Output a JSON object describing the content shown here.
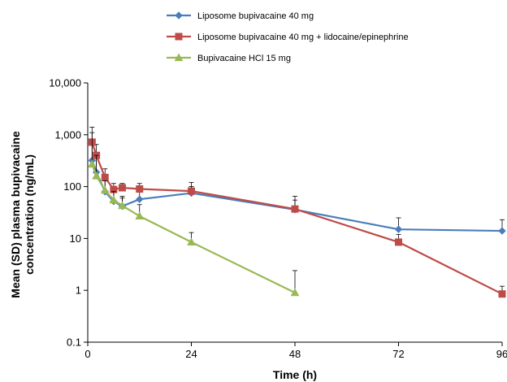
{
  "chart_data": {
    "type": "line",
    "xlabel": "Time (h)",
    "ylabel_line1": "Mean (SD) plasma bupivacaine",
    "ylabel_line2": "concentration (ng/mL)",
    "x_ticks": [
      0,
      24,
      48,
      72,
      96
    ],
    "x_tick_labels": [
      "0",
      "24",
      "48",
      "72",
      "96"
    ],
    "xlim": [
      0,
      96
    ],
    "y_scale": "log",
    "y_ticks": [
      0.1,
      1,
      10,
      100,
      1000,
      10000
    ],
    "y_tick_labels": [
      "0.1",
      "1",
      "10",
      "100",
      "1,000",
      "10,000"
    ],
    "ylim": [
      0.1,
      10000
    ],
    "grid": "none",
    "legend_position": "top-center",
    "series": [
      {
        "name": "Liposome bupivacaine 40 mg",
        "color": "#4a7ebb",
        "marker": "diamond",
        "x": [
          1,
          2,
          4,
          6,
          8,
          12,
          24,
          48,
          72,
          96
        ],
        "y": [
          320,
          190,
          80,
          52,
          42,
          57,
          75,
          36,
          15,
          14
        ],
        "error_upper": [
          800,
          450,
          160,
          90,
          65,
          100,
          100,
          55,
          25,
          23
        ]
      },
      {
        "name": "Liposome bupivacaine 40 mg + lidocaine/epinephrine",
        "color": "#be4b48",
        "marker": "square",
        "x": [
          1,
          2,
          4,
          6,
          8,
          12,
          24,
          48,
          72,
          96
        ],
        "y": [
          720,
          400,
          150,
          88,
          95,
          90,
          82,
          37,
          8.5,
          0.85
        ],
        "error_upper": [
          1400,
          650,
          220,
          115,
          115,
          115,
          120,
          65,
          12,
          1.2
        ]
      },
      {
        "name": "Bupivacaine HCl 15 mg",
        "color": "#98b954",
        "marker": "triangle",
        "x": [
          1,
          2,
          4,
          6,
          8,
          12,
          24,
          48
        ],
        "y": [
          270,
          160,
          85,
          55,
          43,
          27,
          8.5,
          0.9
        ],
        "error_upper": [
          1100,
          400,
          130,
          80,
          60,
          45,
          13,
          2.4
        ]
      }
    ]
  }
}
